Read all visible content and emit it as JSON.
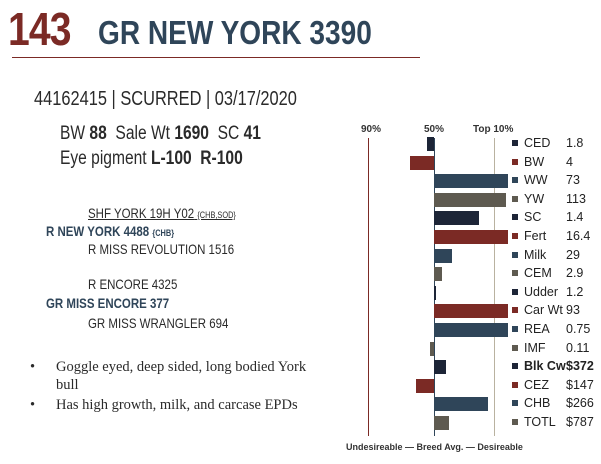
{
  "header": {
    "lot_number": "143",
    "animal_name": "GR NEW YORK 3390"
  },
  "registration_line": "44162415 | SCURRED | 03/17/2020",
  "stats": {
    "bw_label": "BW",
    "bw_value": "88",
    "sale_wt_label": "Sale Wt",
    "sale_wt_value": "1690",
    "sc_label": "SC",
    "sc_value": "41",
    "eye_label": "Eye pigment",
    "eye_left": "L-100",
    "eye_right": "R-100"
  },
  "pedigree": {
    "sire_sire": "SHF YORK 19H Y02",
    "sire_sire_tag": "{CHB,SOD}",
    "sire": "R NEW YORK 4488",
    "sire_tag": "{CHB}",
    "sire_dam": "R MISS REVOLUTION 1516",
    "dam_sire": "R ENCORE 4325",
    "dam": "GR MISS ENCORE 377",
    "dam_dam": "GR MISS WRANGLER 694"
  },
  "bullets": [
    "Goggle eyed, deep sided, long bodied York bull",
    "Has high growth, milk, and carcase EPDs"
  ],
  "chart": {
    "header_90": "90%",
    "header_50": "50%",
    "header_top10": "Top 10%",
    "footer": "Undesireable — Breed Avg. —  Desireable"
  },
  "chart_data": {
    "type": "bar",
    "scale": "percentile-rank, 0 = breed average (50%), positive = more desirable, 1.0 = Top 10%, -1.0 = 90%",
    "categories": [
      "CED",
      "BW",
      "WW",
      "YW",
      "SC",
      "Fert",
      "Milk",
      "CEM",
      "Udder",
      "Car Wt",
      "REA",
      "IMF",
      "Blk Cw",
      "CEZ",
      "CHB",
      "TOTL"
    ],
    "display_values": [
      "1.8",
      "4",
      "73",
      "113",
      "1.4",
      "16.4",
      "29",
      "2.9",
      "1.2",
      "93",
      "0.75",
      "0.11",
      "$372",
      "$147",
      "$266",
      "$787"
    ],
    "values": [
      -0.12,
      -0.4,
      1.6,
      1.2,
      0.75,
      1.6,
      0.3,
      0.13,
      0.03,
      1.6,
      1.6,
      -0.06,
      0.2,
      -0.3,
      0.9,
      0.25
    ],
    "colors": [
      "#1d2537",
      "#7b2a25",
      "#2f4559",
      "#5e5a50",
      "#1d2537",
      "#7b2a25",
      "#2f4559",
      "#5e5a50",
      "#1d2537",
      "#7b2a25",
      "#2f4559",
      "#5e5a50",
      "#1d2537",
      "#7b2a25",
      "#2f4559",
      "#5e5a50"
    ],
    "bold_categories": [
      "Blk Cw"
    ]
  }
}
